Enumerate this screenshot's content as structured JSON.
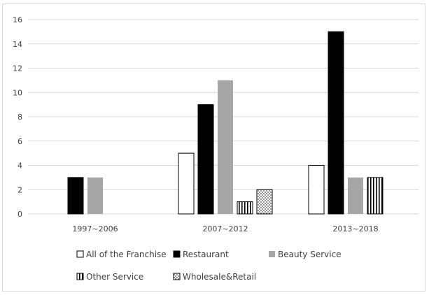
{
  "chart_data": {
    "type": "bar",
    "categories": [
      "1997~2006",
      "2007~2012",
      "2013~2018"
    ],
    "ylim": [
      0,
      16
    ],
    "yticks": [
      0,
      2,
      4,
      6,
      8,
      10,
      12,
      14,
      16
    ],
    "grid": true,
    "legend_position": "bottom",
    "series": [
      {
        "name": "All of the Franchise",
        "pattern": "white",
        "values": [
          null,
          5,
          4
        ]
      },
      {
        "name": "Restaurant",
        "pattern": "black",
        "values": [
          3,
          9,
          15
        ]
      },
      {
        "name": "Beauty Service",
        "pattern": "gray",
        "values": [
          3,
          11,
          3
        ]
      },
      {
        "name": "Other Service",
        "pattern": "vertical-stripes",
        "values": [
          null,
          1,
          3
        ]
      },
      {
        "name": "Wholesale&Retail",
        "pattern": "dots",
        "values": [
          null,
          2,
          null
        ]
      }
    ],
    "colors": {
      "black": "#000000",
      "gray": "#a6a6a6",
      "white": "#ffffff",
      "grid": "#d9d9d9",
      "text": "#404040"
    }
  }
}
